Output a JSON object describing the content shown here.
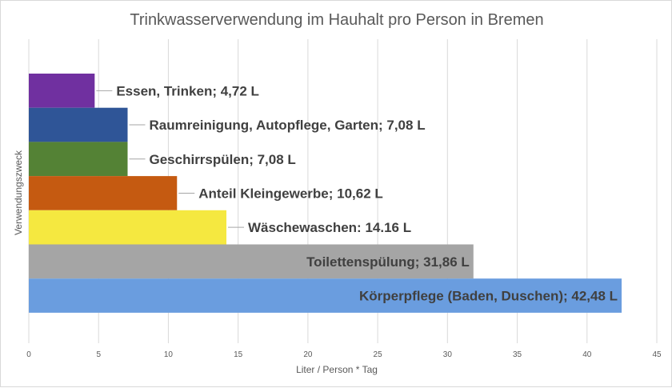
{
  "chart_data": {
    "type": "bar",
    "orientation": "horizontal",
    "title": "Trinkwasserverwendung im Hauhalt pro Person in Bremen",
    "xlabel": "Liter / Person * Tag",
    "ylabel": "Verwendungszweck",
    "xlim": [
      0,
      45
    ],
    "xticks": [
      "0",
      "5",
      "10",
      "15",
      "20",
      "25",
      "30",
      "35",
      "40",
      "45"
    ],
    "grid": "vertical",
    "categories": [
      "Essen, Trinken",
      "Raumreinigung, Autopflege, Garten",
      "Geschirrspülen",
      "Anteil Kleingewerbe",
      "Wäschewaschen",
      "Toilettenspülung",
      "Körperpflege (Baden, Duschen)"
    ],
    "values": [
      4.72,
      7.08,
      7.08,
      10.62,
      14.16,
      31.86,
      42.48
    ],
    "data_labels": [
      "Essen, Trinken; 4,72 L",
      "Raumreinigung, Autopflege, Garten; 7,08 L",
      "Geschirrspülen; 7,08 L",
      "Anteil Kleingewerbe; 10,62 L",
      "Wäschewaschen: 14.16 L",
      "Toilettenspülung; 31,86 L",
      "Körperpflege (Baden, Duschen); 42,48 L"
    ],
    "colors": [
      "#7030a0",
      "#2f5597",
      "#548235",
      "#c55a11",
      "#f5e840",
      "#a5a5a5",
      "#6a9ddf"
    ]
  }
}
